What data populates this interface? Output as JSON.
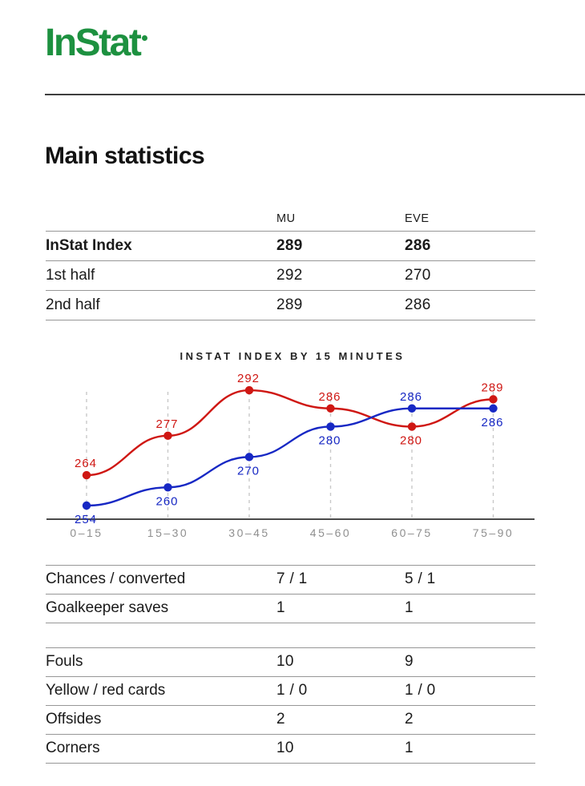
{
  "brand": {
    "logo_text": "InStat",
    "logo_color": "#1d9140"
  },
  "page_title": "Main statistics",
  "columns": {
    "team1": "MU",
    "team2": "EVE"
  },
  "index_table": {
    "rows": [
      {
        "label": "InStat Index",
        "mu": "289",
        "eve": "286"
      },
      {
        "label": "1st half",
        "mu": "292",
        "eve": "270"
      },
      {
        "label": "2nd half",
        "mu": "289",
        "eve": "286"
      }
    ]
  },
  "chart_data": {
    "type": "line",
    "title": "INSTAT INDEX BY 15 MINUTES",
    "categories": [
      "0–15",
      "15–30",
      "30–45",
      "45–60",
      "60–75",
      "75–90"
    ],
    "series": [
      {
        "name": "MU",
        "color": "#cf1713",
        "values": [
          264,
          277,
          292,
          286,
          280,
          289
        ],
        "label_side": [
          "above",
          "above",
          "above",
          "above",
          "below",
          "above"
        ]
      },
      {
        "name": "EVE",
        "color": "#1728c4",
        "values": [
          254,
          260,
          270,
          280,
          286,
          286
        ],
        "label_side": [
          "below",
          "below",
          "below",
          "below",
          "above",
          "below"
        ]
      }
    ],
    "ylim": [
      248,
      298
    ],
    "grid": "dashed-vertical-per-category",
    "legend": "none",
    "axis_color": "#4a4a4a",
    "grid_color": "#c9c9c9",
    "tick_color": "#8f8f8f"
  },
  "stats_tables": [
    {
      "rows": [
        {
          "label": "Chances / converted",
          "mu": "7 / 1",
          "eve": "5 / 1"
        },
        {
          "label": "Goalkeeper saves",
          "mu": "1",
          "eve": "1"
        }
      ]
    },
    {
      "rows": [
        {
          "label": "Fouls",
          "mu": "10",
          "eve": "9"
        },
        {
          "label": "Yellow / red cards",
          "mu": "1 / 0",
          "eve": "1 / 0"
        },
        {
          "label": "Offsides",
          "mu": "2",
          "eve": "2"
        },
        {
          "label": "Corners",
          "mu": "10",
          "eve": "1"
        }
      ]
    }
  ]
}
